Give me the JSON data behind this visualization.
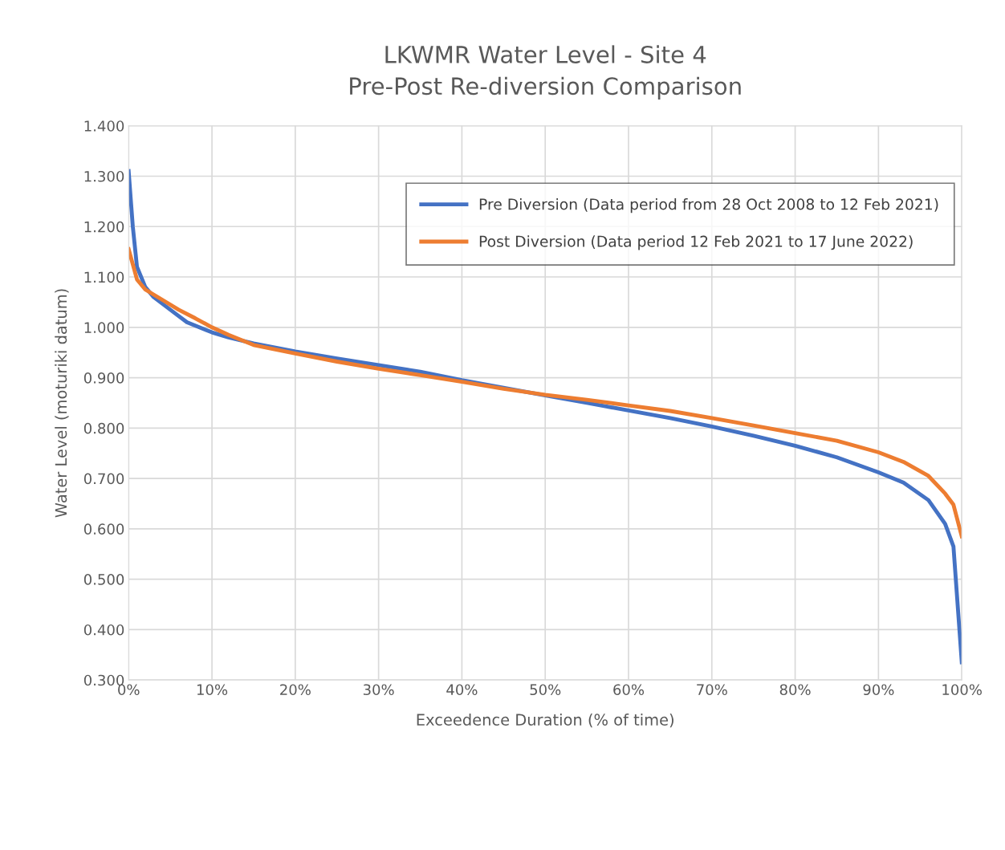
{
  "chart_data": {
    "type": "line",
    "title": "LKWMR Water Level - Site 4\nPre-Post Re-diversion Comparison",
    "xlabel": "Exceedence Duration (% of time)",
    "ylabel": "Water Level (moturiki datum)",
    "series": [
      {
        "name": "Pre Diversion (Data period from 28 Oct 2008 to 12 Feb 2021)",
        "color": "#4472c4",
        "x": [
          0,
          0.5,
          1,
          2,
          3,
          5,
          7,
          10,
          12,
          15,
          20,
          25,
          30,
          35,
          40,
          45,
          50,
          55,
          60,
          65,
          70,
          75,
          80,
          85,
          90,
          93,
          96,
          98,
          99,
          100
        ],
        "values": [
          1.31,
          1.2,
          1.12,
          1.08,
          1.06,
          1.035,
          1.01,
          0.99,
          0.98,
          0.968,
          0.952,
          0.938,
          0.925,
          0.912,
          0.895,
          0.88,
          0.865,
          0.85,
          0.835,
          0.82,
          0.803,
          0.785,
          0.765,
          0.742,
          0.712,
          0.692,
          0.657,
          0.61,
          0.565,
          0.335
        ]
      },
      {
        "name": "Post Diversion (Data period 12 Feb 2021 to 17 June 2022)",
        "color": "#ed7d31",
        "x": [
          0,
          1,
          2,
          4,
          6,
          8,
          10,
          12,
          15,
          20,
          25,
          30,
          35,
          40,
          45,
          50,
          55,
          60,
          65,
          70,
          75,
          80,
          85,
          90,
          93,
          96,
          98,
          99,
          100
        ],
        "values": [
          1.155,
          1.095,
          1.075,
          1.055,
          1.035,
          1.018,
          1.0,
          0.985,
          0.965,
          0.948,
          0.932,
          0.918,
          0.905,
          0.892,
          0.878,
          0.866,
          0.856,
          0.845,
          0.834,
          0.82,
          0.805,
          0.79,
          0.775,
          0.752,
          0.733,
          0.705,
          0.67,
          0.648,
          0.585
        ]
      }
    ],
    "xlim": [
      0,
      100
    ],
    "xticks": [
      {
        "value": 0,
        "label": "0%"
      },
      {
        "value": 10,
        "label": "10%"
      },
      {
        "value": 20,
        "label": "20%"
      },
      {
        "value": 30,
        "label": "30%"
      },
      {
        "value": 40,
        "label": "40%"
      },
      {
        "value": 50,
        "label": "50%"
      },
      {
        "value": 60,
        "label": "60%"
      },
      {
        "value": 70,
        "label": "70%"
      },
      {
        "value": 80,
        "label": "80%"
      },
      {
        "value": 90,
        "label": "90%"
      },
      {
        "value": 100,
        "label": "100%"
      }
    ],
    "ylim": [
      0.3,
      1.4
    ],
    "yticks": [
      {
        "value": 0.3,
        "label": "0.300"
      },
      {
        "value": 0.4,
        "label": "0.400"
      },
      {
        "value": 0.5,
        "label": "0.500"
      },
      {
        "value": 0.6,
        "label": "0.600"
      },
      {
        "value": 0.7,
        "label": "0.700"
      },
      {
        "value": 0.8,
        "label": "0.800"
      },
      {
        "value": 0.9,
        "label": "0.900"
      },
      {
        "value": 1.0,
        "label": "1.000"
      },
      {
        "value": 1.1,
        "label": "1.100"
      },
      {
        "value": 1.2,
        "label": "1.200"
      },
      {
        "value": 1.3,
        "label": "1.300"
      },
      {
        "value": 1.4,
        "label": "1.400"
      }
    ],
    "grid": true,
    "legend": "top right",
    "line_style": "solid"
  }
}
